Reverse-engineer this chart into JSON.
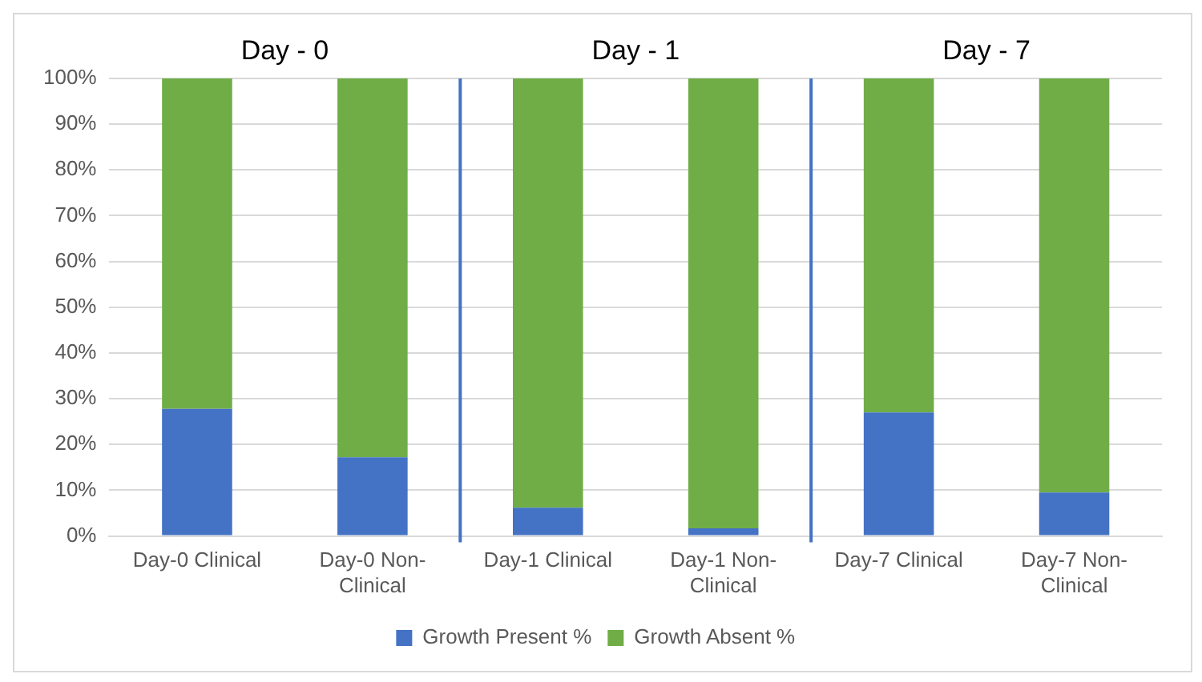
{
  "chart_data": {
    "type": "bar",
    "stacked": true,
    "categories": [
      "Day-0 Clinical",
      "Day-0 Non-Clinical",
      "Day-1 Clinical",
      "Day-1 Non-Clinical",
      "Day-7 Clinical",
      "Day-7 Non-Clinical"
    ],
    "series": [
      {
        "name": "Growth Present %",
        "color": "#4472c4",
        "values": [
          27.8,
          17.2,
          6.2,
          1.7,
          27,
          9.5
        ]
      },
      {
        "name": "Growth Absent %",
        "color": "#70ad47",
        "values": [
          72.2,
          82.8,
          93.8,
          98.3,
          73,
          90.5
        ]
      }
    ],
    "ylim": [
      0,
      100
    ],
    "yticks": [
      {
        "value": 0,
        "label": "0%"
      },
      {
        "value": 10,
        "label": "10%"
      },
      {
        "value": 20,
        "label": "20%"
      },
      {
        "value": 30,
        "label": "30%"
      },
      {
        "value": 40,
        "label": "40%"
      },
      {
        "value": 50,
        "label": "50%"
      },
      {
        "value": 60,
        "label": "60%"
      },
      {
        "value": 70,
        "label": "70%"
      },
      {
        "value": 80,
        "label": "80%"
      },
      {
        "value": 90,
        "label": "90%"
      },
      {
        "value": 100,
        "label": "100%"
      }
    ],
    "grid": "y",
    "legend": "bottom",
    "annotations": [
      "Day - 0",
      "Day - 1",
      "Day - 7"
    ]
  }
}
